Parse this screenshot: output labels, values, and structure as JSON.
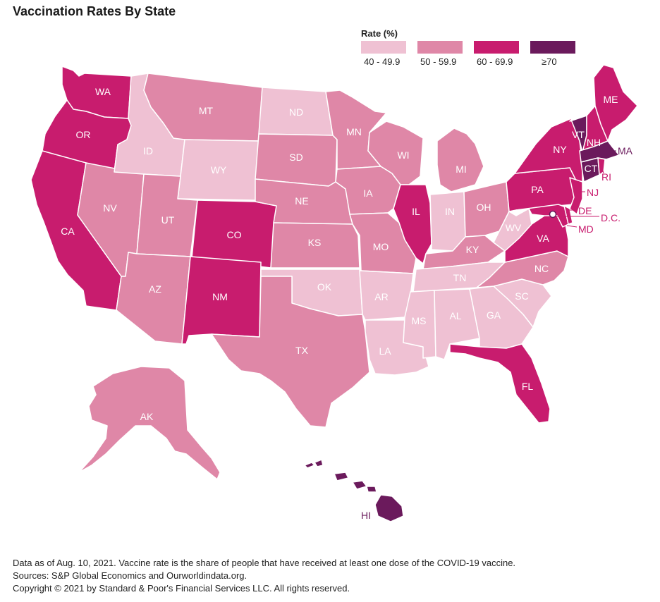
{
  "title": "Vaccination Rates By State",
  "legend": {
    "title": "Rate (%)",
    "items": [
      {
        "label": "40 - 49.9",
        "color": "#efc1d3"
      },
      {
        "label": "50 - 59.9",
        "color": "#df87a7"
      },
      {
        "label": "60 - 69.9",
        "color": "#c81c6e"
      },
      {
        "label": "≥70",
        "color": "#6b1a5c"
      }
    ]
  },
  "states": [
    {
      "code": "WA",
      "bin": "60 - 69.9"
    },
    {
      "code": "OR",
      "bin": "60 - 69.9"
    },
    {
      "code": "CA",
      "bin": "60 - 69.9"
    },
    {
      "code": "NV",
      "bin": "50 - 59.9"
    },
    {
      "code": "ID",
      "bin": "40 - 49.9"
    },
    {
      "code": "MT",
      "bin": "50 - 59.9"
    },
    {
      "code": "WY",
      "bin": "40 - 49.9"
    },
    {
      "code": "UT",
      "bin": "50 - 59.9"
    },
    {
      "code": "AZ",
      "bin": "50 - 59.9"
    },
    {
      "code": "CO",
      "bin": "60 - 69.9"
    },
    {
      "code": "NM",
      "bin": "60 - 69.9"
    },
    {
      "code": "ND",
      "bin": "40 - 49.9"
    },
    {
      "code": "SD",
      "bin": "50 - 59.9"
    },
    {
      "code": "NE",
      "bin": "50 - 59.9"
    },
    {
      "code": "KS",
      "bin": "50 - 59.9"
    },
    {
      "code": "OK",
      "bin": "40 - 49.9"
    },
    {
      "code": "TX",
      "bin": "50 - 59.9"
    },
    {
      "code": "MN",
      "bin": "50 - 59.9"
    },
    {
      "code": "IA",
      "bin": "50 - 59.9"
    },
    {
      "code": "MO",
      "bin": "50 - 59.9"
    },
    {
      "code": "AR",
      "bin": "40 - 49.9"
    },
    {
      "code": "LA",
      "bin": "40 - 49.9"
    },
    {
      "code": "WI",
      "bin": "50 - 59.9"
    },
    {
      "code": "IL",
      "bin": "60 - 69.9"
    },
    {
      "code": "MI",
      "bin": "50 - 59.9"
    },
    {
      "code": "IN",
      "bin": "40 - 49.9"
    },
    {
      "code": "OH",
      "bin": "50 - 59.9"
    },
    {
      "code": "KY",
      "bin": "50 - 59.9"
    },
    {
      "code": "TN",
      "bin": "40 - 49.9"
    },
    {
      "code": "MS",
      "bin": "40 - 49.9"
    },
    {
      "code": "AL",
      "bin": "40 - 49.9"
    },
    {
      "code": "GA",
      "bin": "40 - 49.9"
    },
    {
      "code": "FL",
      "bin": "60 - 69.9"
    },
    {
      "code": "SC",
      "bin": "40 - 49.9"
    },
    {
      "code": "NC",
      "bin": "50 - 59.9"
    },
    {
      "code": "VA",
      "bin": "60 - 69.9"
    },
    {
      "code": "WV",
      "bin": "40 - 49.9"
    },
    {
      "code": "PA",
      "bin": "60 - 69.9"
    },
    {
      "code": "NY",
      "bin": "60 - 69.9"
    },
    {
      "code": "NJ",
      "bin": "60 - 69.9"
    },
    {
      "code": "DE",
      "bin": "60 - 69.9"
    },
    {
      "code": "MD",
      "bin": "60 - 69.9"
    },
    {
      "code": "D.C.",
      "bin": "60 - 69.9"
    },
    {
      "code": "CT",
      "bin": "≥70"
    },
    {
      "code": "RI",
      "bin": "60 - 69.9"
    },
    {
      "code": "MA",
      "bin": "≥70"
    },
    {
      "code": "VT",
      "bin": "≥70"
    },
    {
      "code": "NH",
      "bin": "60 - 69.9"
    },
    {
      "code": "ME",
      "bin": "60 - 69.9"
    },
    {
      "code": "AK",
      "bin": "50 - 59.9"
    },
    {
      "code": "HI",
      "bin": "≥70"
    }
  ],
  "footer": {
    "note": "Data as of Aug. 10, 2021. Vaccine rate is the share of people that have received at least one dose of the COVID-19 vaccine.",
    "sources": "Sources: S&P Global Economics and Ourworldindata.org.",
    "copyright": "Copyright © 2021 by Standard & Poor's Financial Services LLC. All rights reserved."
  }
}
